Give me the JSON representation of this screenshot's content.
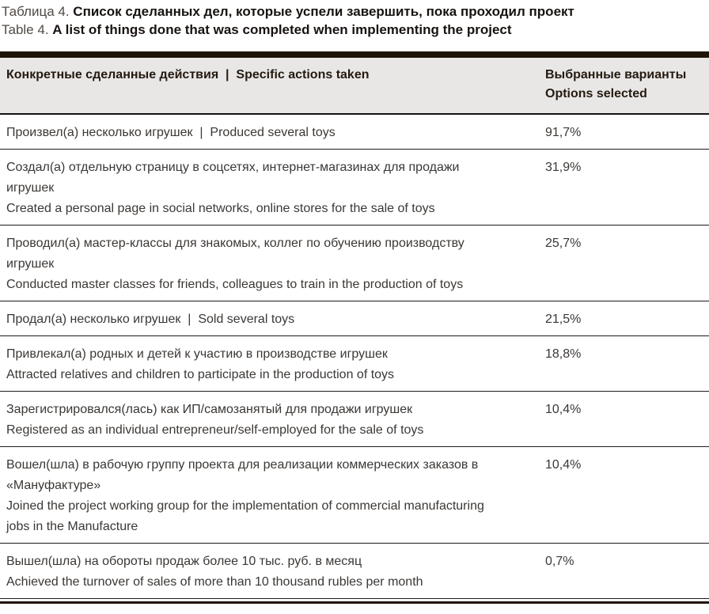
{
  "caption": {
    "ru_prefix": "Таблица 4.",
    "ru_main": "Список сделанных дел, которые успели завершить, пока проходил проект",
    "en_prefix": "Table 4.",
    "en_main": "A list of things done that was completed when implementing the project"
  },
  "table": {
    "header": {
      "actions": "Конкретные сделанные действия  |  Specific actions taken",
      "options_line1": "Выбранные варианты",
      "options_line2": "Options selected"
    },
    "rows": [
      {
        "lines": [
          "Произвел(а) несколько игрушек  |  Produced several toys"
        ],
        "value": "91,7%"
      },
      {
        "lines": [
          "Создал(а) отдельную страницу в соцсетях, интернет-магазинах для продажи",
          "игрушек",
          "Created a personal page in social networks, online stores for the sale of toys"
        ],
        "value": "31,9%"
      },
      {
        "lines": [
          "Проводил(а) мастер-классы для знакомых, коллег по обучению производству",
          "игрушек",
          "Conducted master classes for friends, colleagues to train in the production of toys"
        ],
        "value": "25,7%"
      },
      {
        "lines": [
          "Продал(а) несколько игрушек  |  Sold several toys"
        ],
        "value": "21,5%"
      },
      {
        "lines": [
          "Привлекал(а) родных и детей к участию в производстве игрушек",
          "Attracted relatives and children to participate in the production of toys"
        ],
        "value": "18,8%"
      },
      {
        "lines": [
          "Зарегистрировался(лась) как ИП/самозанятый для продажи игрушек",
          "Registered as an individual entrepreneur/self-employed for the sale of toys"
        ],
        "value": "10,4%"
      },
      {
        "lines": [
          "Вошел(шла) в рабочую группу проекта для реализации коммерческих заказов в",
          "«Мануфактуре»",
          "Joined the project working group for the implementation of commercial manufacturing",
          "jobs in the Manufacture"
        ],
        "value": "10,4%"
      },
      {
        "lines": [
          "Вышел(шла) на обороты продаж более 10 тыс. руб. в месяц",
          "Achieved the turnover of sales of more than 10 thousand rubles per month"
        ],
        "value": "0,7%"
      }
    ]
  },
  "colors": {
    "top_band": "#1f1408",
    "header_bg": "#e9e7e6",
    "header_text": "#241a10",
    "body_text": "#3b3734",
    "separator": "#1e1c1a"
  }
}
